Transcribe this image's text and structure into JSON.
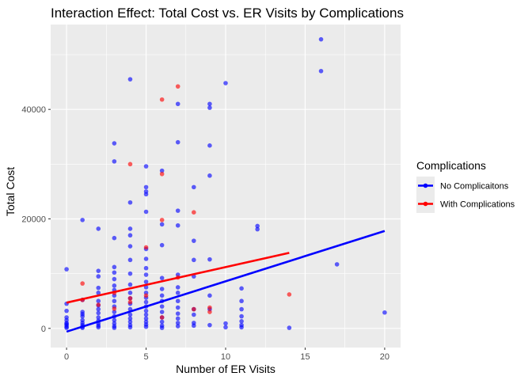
{
  "chart_data": {
    "type": "scatter",
    "title": "Interaction Effect: Total Cost vs. ER Visits by Complications",
    "xlabel": "Number of ER Visits",
    "ylabel": "Total Cost",
    "xlim": [
      -1,
      21
    ],
    "ylim": [
      -3500,
      55500
    ],
    "x_ticks": [
      0,
      5,
      10,
      15,
      20
    ],
    "y_ticks": [
      0,
      20000,
      40000
    ],
    "x_tick_labels": [
      "0",
      "5",
      "10",
      "15",
      "20"
    ],
    "y_tick_labels": [
      "0",
      "20000",
      "40000"
    ],
    "grid": true,
    "legend": {
      "title": "Complications",
      "placement": "right",
      "entries": [
        "No Complicaitons",
        "With Complications"
      ]
    },
    "series": [
      {
        "name": "No Complicaitons",
        "color": "#0000FF",
        "points": [
          [
            0,
            10800
          ],
          [
            0,
            4500
          ],
          [
            0,
            3200
          ],
          [
            0,
            2000
          ],
          [
            0,
            1500
          ],
          [
            0,
            1000
          ],
          [
            0,
            600
          ],
          [
            0,
            300
          ],
          [
            0,
            100
          ],
          [
            0,
            800
          ],
          [
            1,
            19800
          ],
          [
            1,
            5200
          ],
          [
            1,
            3000
          ],
          [
            1,
            2200
          ],
          [
            1,
            1500
          ],
          [
            1,
            1000
          ],
          [
            1,
            600
          ],
          [
            1,
            300
          ],
          [
            1,
            100
          ],
          [
            1,
            2600
          ],
          [
            2,
            18200
          ],
          [
            2,
            10500
          ],
          [
            2,
            9500
          ],
          [
            2,
            6500
          ],
          [
            2,
            5000
          ],
          [
            2,
            4200
          ],
          [
            2,
            3500
          ],
          [
            2,
            2800
          ],
          [
            2,
            2000
          ],
          [
            2,
            1400
          ],
          [
            2,
            900
          ],
          [
            2,
            500
          ],
          [
            2,
            200
          ],
          [
            2,
            7400
          ],
          [
            3,
            33800
          ],
          [
            3,
            30500
          ],
          [
            3,
            16500
          ],
          [
            3,
            11200
          ],
          [
            3,
            10200
          ],
          [
            3,
            9000
          ],
          [
            3,
            7800
          ],
          [
            3,
            7000
          ],
          [
            3,
            6000
          ],
          [
            3,
            5000
          ],
          [
            3,
            4000
          ],
          [
            3,
            3000
          ],
          [
            3,
            2200
          ],
          [
            3,
            1500
          ],
          [
            3,
            900
          ],
          [
            3,
            400
          ],
          [
            3,
            100
          ],
          [
            4,
            45500
          ],
          [
            4,
            23000
          ],
          [
            4,
            18200
          ],
          [
            4,
            17000
          ],
          [
            4,
            15000
          ],
          [
            4,
            12500
          ],
          [
            4,
            10000
          ],
          [
            4,
            8000
          ],
          [
            4,
            6500
          ],
          [
            4,
            5500
          ],
          [
            4,
            4500
          ],
          [
            4,
            3500
          ],
          [
            4,
            2500
          ],
          [
            4,
            1800
          ],
          [
            4,
            1200
          ],
          [
            4,
            600
          ],
          [
            4,
            200
          ],
          [
            5,
            29600
          ],
          [
            5,
            25800
          ],
          [
            5,
            25000
          ],
          [
            5,
            24500
          ],
          [
            5,
            21300
          ],
          [
            5,
            14500
          ],
          [
            5,
            12700
          ],
          [
            5,
            11000
          ],
          [
            5,
            9800
          ],
          [
            5,
            8500
          ],
          [
            5,
            7500
          ],
          [
            5,
            6500
          ],
          [
            5,
            5600
          ],
          [
            5,
            4800
          ],
          [
            5,
            4000
          ],
          [
            5,
            3200
          ],
          [
            5,
            2500
          ],
          [
            5,
            1800
          ],
          [
            5,
            1200
          ],
          [
            5,
            700
          ],
          [
            5,
            300
          ],
          [
            6,
            28800
          ],
          [
            6,
            19000
          ],
          [
            6,
            15200
          ],
          [
            6,
            9200
          ],
          [
            6,
            7200
          ],
          [
            6,
            6000
          ],
          [
            6,
            5000
          ],
          [
            6,
            4000
          ],
          [
            6,
            3000
          ],
          [
            6,
            2000
          ],
          [
            6,
            1200
          ],
          [
            6,
            500
          ],
          [
            6,
            100
          ],
          [
            7,
            41000
          ],
          [
            7,
            34000
          ],
          [
            7,
            21500
          ],
          [
            7,
            18800
          ],
          [
            7,
            9800
          ],
          [
            7,
            7500
          ],
          [
            7,
            6500
          ],
          [
            7,
            5000
          ],
          [
            7,
            3800
          ],
          [
            7,
            2700
          ],
          [
            7,
            1800
          ],
          [
            7,
            1000
          ],
          [
            7,
            400
          ],
          [
            8,
            25800
          ],
          [
            8,
            16000
          ],
          [
            8,
            12500
          ],
          [
            8,
            9500
          ],
          [
            8,
            3500
          ],
          [
            8,
            2500
          ],
          [
            8,
            1000
          ],
          [
            8,
            500
          ],
          [
            9,
            41000
          ],
          [
            9,
            40300
          ],
          [
            9,
            33400
          ],
          [
            9,
            27900
          ],
          [
            9,
            12600
          ],
          [
            9,
            6000
          ],
          [
            9,
            3500
          ],
          [
            9,
            600
          ],
          [
            10,
            44800
          ],
          [
            10,
            900
          ],
          [
            10,
            200
          ],
          [
            11,
            7300
          ],
          [
            11,
            5000
          ],
          [
            11,
            3500
          ],
          [
            11,
            2200
          ],
          [
            11,
            1300
          ],
          [
            11,
            600
          ],
          [
            11,
            200
          ],
          [
            12,
            18700
          ],
          [
            12,
            18100
          ],
          [
            14,
            100
          ],
          [
            16,
            52800
          ],
          [
            16,
            47000
          ],
          [
            17,
            11700
          ],
          [
            20,
            2900
          ]
        ],
        "fit": [
          [
            0,
            -600
          ],
          [
            20,
            17800
          ]
        ]
      },
      {
        "name": "With Complications",
        "color": "#FF0000",
        "points": [
          [
            1,
            8200
          ],
          [
            1,
            5200
          ],
          [
            2,
            4300
          ],
          [
            3,
            6500
          ],
          [
            3,
            3600
          ],
          [
            4,
            30000
          ],
          [
            4,
            5500
          ],
          [
            4,
            4800
          ],
          [
            5,
            14800
          ],
          [
            5,
            6000
          ],
          [
            6,
            41800
          ],
          [
            6,
            28200
          ],
          [
            6,
            19800
          ],
          [
            6,
            2000
          ],
          [
            7,
            44200
          ],
          [
            7,
            9300
          ],
          [
            8,
            21200
          ],
          [
            8,
            3500
          ],
          [
            9,
            3800
          ],
          [
            9,
            3000
          ],
          [
            14,
            6200
          ]
        ],
        "fit": [
          [
            0,
            4700
          ],
          [
            14,
            13800
          ]
        ]
      }
    ]
  }
}
